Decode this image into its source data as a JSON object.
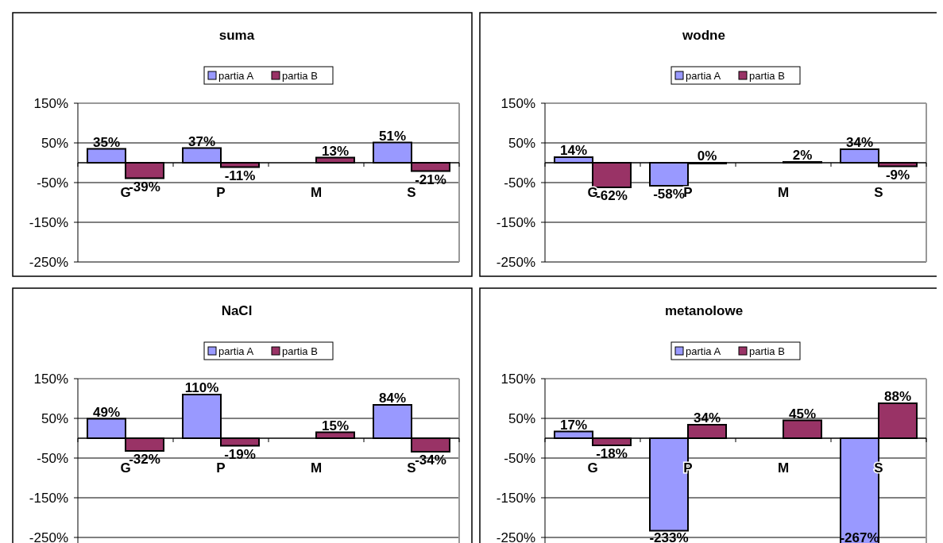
{
  "chart_data": [
    {
      "type": "bar",
      "title": "suma",
      "categories": [
        "G",
        "P",
        "M",
        "S"
      ],
      "series": [
        {
          "name": "partia A",
          "color": "#9999ff",
          "values": [
            35,
            37,
            null,
            51
          ],
          "value_labels": [
            "35%",
            "37%",
            null,
            "51%"
          ]
        },
        {
          "name": "partia B",
          "color": "#993366",
          "values": [
            -39,
            -11,
            13,
            -21
          ],
          "value_labels": [
            "-39%",
            "-11%",
            "13%",
            "-21%"
          ]
        }
      ],
      "ylim": [
        -250,
        150
      ],
      "yticks": [
        {
          "value": 150,
          "label": "150%"
        },
        {
          "value": 50,
          "label": "50%"
        },
        {
          "value": -50,
          "label": "-50%"
        },
        {
          "value": -150,
          "label": "-150%"
        },
        {
          "value": -250,
          "label": "-250%"
        }
      ],
      "grid": "y",
      "legend": "top"
    },
    {
      "type": "bar",
      "title": "wodne",
      "categories": [
        "G",
        "P",
        "M",
        "S"
      ],
      "series": [
        {
          "name": "partia A",
          "color": "#9999ff",
          "values": [
            14,
            -58,
            null,
            34
          ],
          "value_labels": [
            "14%",
            "-58%",
            null,
            "34%"
          ]
        },
        {
          "name": "partia B",
          "color": "#993366",
          "values": [
            -62,
            0,
            2,
            -9
          ],
          "value_labels": [
            "-62%",
            "0%",
            "2%",
            "-9%"
          ]
        }
      ],
      "ylim": [
        -250,
        150
      ],
      "yticks": [
        {
          "value": 150,
          "label": "150%"
        },
        {
          "value": 50,
          "label": "50%"
        },
        {
          "value": -50,
          "label": "-50%"
        },
        {
          "value": -150,
          "label": "-150%"
        },
        {
          "value": -250,
          "label": "-250%"
        }
      ],
      "grid": "y",
      "legend": "top"
    },
    {
      "type": "bar",
      "title": "NaCl",
      "categories": [
        "G",
        "P",
        "M",
        "S"
      ],
      "series": [
        {
          "name": "partia A",
          "color": "#9999ff",
          "values": [
            49,
            110,
            null,
            84
          ],
          "value_labels": [
            "49%",
            "110%",
            null,
            "84%"
          ]
        },
        {
          "name": "partia B",
          "color": "#993366",
          "values": [
            -32,
            -19,
            15,
            -34
          ],
          "value_labels": [
            "-32%",
            "-19%",
            "15%",
            "-34%"
          ]
        }
      ],
      "ylim": [
        -270,
        150
      ],
      "yticks": [
        {
          "value": 150,
          "label": "150%"
        },
        {
          "value": 50,
          "label": "50%"
        },
        {
          "value": -50,
          "label": "-50%"
        },
        {
          "value": -150,
          "label": "-150%"
        },
        {
          "value": -250,
          "label": "-250%"
        }
      ],
      "grid": "y",
      "legend": "top"
    },
    {
      "type": "bar",
      "title": "metanolowe",
      "categories": [
        "G",
        "P",
        "M",
        "S"
      ],
      "series": [
        {
          "name": "partia A",
          "color": "#9999ff",
          "values": [
            17,
            -233,
            null,
            -267
          ],
          "value_labels": [
            "17%",
            "-233%",
            null,
            "-267%"
          ]
        },
        {
          "name": "partia B",
          "color": "#993366",
          "values": [
            -18,
            34,
            45,
            88
          ],
          "value_labels": [
            "-18%",
            "34%",
            "45%",
            "88%"
          ]
        }
      ],
      "ylim": [
        -270,
        150
      ],
      "yticks": [
        {
          "value": 150,
          "label": "150%"
        },
        {
          "value": 50,
          "label": "50%"
        },
        {
          "value": -50,
          "label": "-50%"
        },
        {
          "value": -150,
          "label": "-150%"
        },
        {
          "value": -250,
          "label": "-250%"
        }
      ],
      "grid": "y",
      "legend": "top"
    }
  ]
}
